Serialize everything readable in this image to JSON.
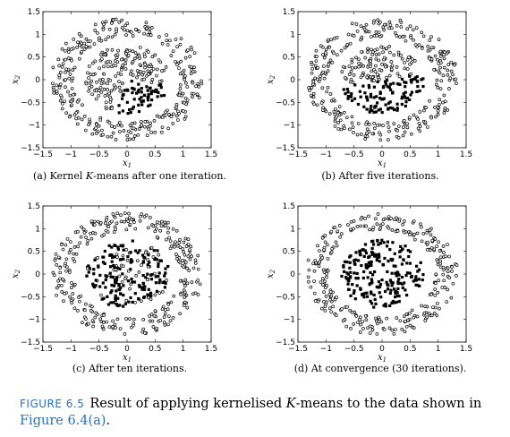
{
  "figure": {
    "label": "FIGURE 6.5",
    "caption_before": "Result of applying kernelised ",
    "caption_k": "K",
    "caption_after": "-means to the data shown in ",
    "caption_ref": "Figure 6.4(a)",
    "caption_end": "."
  },
  "colors": {
    "ink": "#000000",
    "link": "#2a6fb8"
  },
  "chart_data": [
    {
      "type": "scatter",
      "caption": "(a) Kernel K-means after one iteration.",
      "caption_parts": [
        "(a) Kernel ",
        "K",
        "-means after one iteration."
      ],
      "xlabel": "x1",
      "ylabel": "x2",
      "xlim": [
        -1.5,
        1.5
      ],
      "ylim": [
        -1.5,
        1.5
      ],
      "xticks": [
        "−1.5",
        "−1",
        "−0.5",
        "0",
        "0.5",
        "1",
        "1.5"
      ],
      "yticks": [
        "−1.5",
        "−1",
        "−0.5",
        "0",
        "0.5",
        "1",
        "1.5"
      ],
      "ring_radius": [
        0.95,
        1.35
      ],
      "inner_radius": 0.75,
      "n_outer": 300,
      "n_inner": 220,
      "filled_cluster": {
        "region": "lower-right wedge of inner cluster",
        "angle_range_deg": [
          -110,
          -10
        ],
        "fraction_filled": 1.0
      },
      "seed": 11
    },
    {
      "type": "scatter",
      "caption": "(b) After five iterations.",
      "caption_parts": [
        "(b) After five iterations."
      ],
      "xlabel": "x1",
      "ylabel": "x2",
      "xlim": [
        -1.5,
        1.5
      ],
      "ylim": [
        -1.5,
        1.5
      ],
      "xticks": [
        "−1.5",
        "−1",
        "−0.5",
        "0",
        "0.5",
        "1",
        "1.5"
      ],
      "yticks": [
        "−1.5",
        "−1",
        "−0.5",
        "0",
        "0.5",
        "1",
        "1.5"
      ],
      "ring_radius": [
        0.95,
        1.35
      ],
      "inner_radius": 0.75,
      "n_outer": 300,
      "n_inner": 220,
      "filled_cluster": {
        "region": "lower half of inner cluster",
        "angle_range_deg": [
          -170,
          10
        ],
        "fraction_filled": 1.0
      },
      "seed": 23
    },
    {
      "type": "scatter",
      "caption": "(c) After ten iterations.",
      "caption_parts": [
        "(c) After ten iterations."
      ],
      "xlabel": "x1",
      "ylabel": "x2",
      "xlim": [
        -1.5,
        1.5
      ],
      "ylim": [
        -1.5,
        1.5
      ],
      "xticks": [
        "−1.5",
        "−1",
        "−0.5",
        "0",
        "0.5",
        "1",
        "1.5"
      ],
      "yticks": [
        "−1.5",
        "−1",
        "−0.5",
        "0",
        "0.5",
        "1",
        "1.5"
      ],
      "ring_radius": [
        0.95,
        1.35
      ],
      "inner_radius": 0.75,
      "n_outer": 300,
      "n_inner": 220,
      "filled_cluster": {
        "region": "most of inner cluster",
        "angle_range_deg": [
          -180,
          180
        ],
        "fraction_filled": 0.8
      },
      "seed": 37
    },
    {
      "type": "scatter",
      "caption": "(d) At convergence (30 iterations).",
      "caption_parts": [
        "(d) At convergence (30 iterations)."
      ],
      "xlabel": "x1",
      "ylabel": "x2",
      "xlim": [
        -1.5,
        1.5
      ],
      "ylim": [
        -1.5,
        1.5
      ],
      "xticks": [
        "−1.5",
        "−1",
        "−0.5",
        "0",
        "0.5",
        "1",
        "1.5"
      ],
      "yticks": [
        "−1.5",
        "−1",
        "−0.5",
        "0",
        "0.5",
        "1",
        "1.5"
      ],
      "ring_radius": [
        0.95,
        1.35
      ],
      "inner_radius": 0.75,
      "n_outer": 300,
      "n_inner": 220,
      "filled_cluster": {
        "region": "entire inner cluster",
        "angle_range_deg": [
          -180,
          180
        ],
        "fraction_filled": 1.0
      },
      "seed": 53
    }
  ]
}
